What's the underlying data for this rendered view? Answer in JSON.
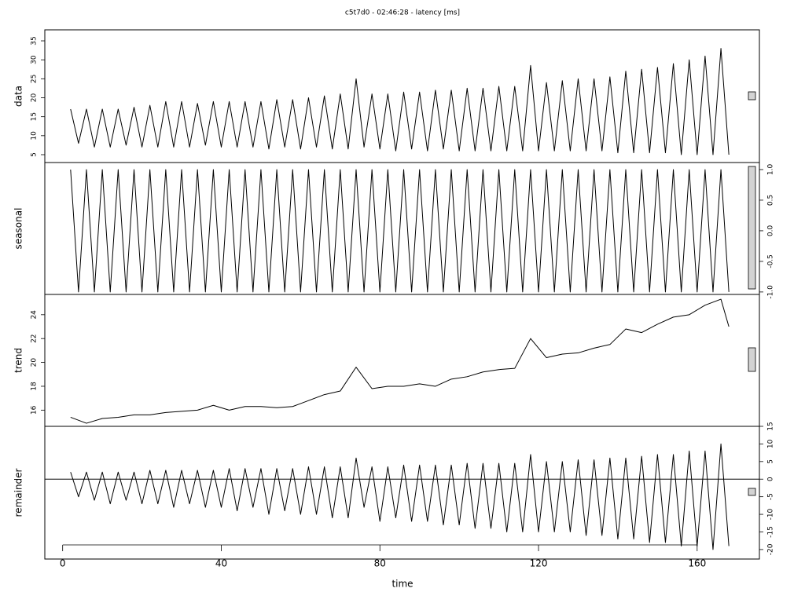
{
  "title": "c5t7d0 - 02:46:28 - latency [ms]",
  "xlabel": "time",
  "xlim": [
    -4.5,
    175.7
  ],
  "xticks": [
    0,
    40,
    80,
    120,
    160
  ],
  "chart_data": [
    {
      "type": "line",
      "ylabel": "data",
      "color": "#000000",
      "x": [
        2,
        4,
        6,
        8,
        10,
        12,
        14,
        16,
        18,
        20,
        22,
        24,
        26,
        28,
        30,
        32,
        34,
        36,
        38,
        40,
        42,
        44,
        46,
        48,
        50,
        52,
        54,
        56,
        58,
        60,
        62,
        64,
        66,
        68,
        70,
        72,
        74,
        76,
        78,
        80,
        82,
        84,
        86,
        88,
        90,
        92,
        94,
        96,
        98,
        100,
        102,
        104,
        106,
        108,
        110,
        112,
        114,
        116,
        118,
        120,
        122,
        124,
        126,
        128,
        130,
        132,
        134,
        136,
        138,
        140,
        142,
        144,
        146,
        148,
        150,
        152,
        154,
        156,
        158,
        160,
        162,
        164,
        166,
        168
      ],
      "values": [
        17,
        8,
        17,
        7,
        17,
        7,
        17,
        7.5,
        17.5,
        7,
        18,
        7,
        19,
        7,
        19,
        7,
        18.5,
        7.5,
        19,
        7,
        19,
        7,
        19,
        7,
        19,
        6.5,
        19.5,
        7,
        19.5,
        6.5,
        20,
        7,
        20.5,
        6.5,
        21,
        6.5,
        25,
        7,
        21,
        6.5,
        21,
        6,
        21.5,
        6.5,
        21.5,
        6,
        22,
        6.5,
        22,
        6,
        22.5,
        6,
        22.5,
        6,
        23,
        6,
        23,
        6,
        28.5,
        6,
        24,
        6,
        24.5,
        6,
        25,
        6,
        25,
        6,
        25.5,
        5.5,
        27,
        5.5,
        27.5,
        5.5,
        28,
        5.5,
        29,
        5,
        30,
        5,
        31,
        5,
        33,
        5
      ],
      "ylim": [
        2.93,
        37.9
      ],
      "yticks": [
        5,
        10,
        15,
        20,
        25,
        30,
        35
      ]
    },
    {
      "type": "line",
      "ylabel": "seasonal",
      "color": "#000000",
      "x": [
        2,
        4,
        6,
        8,
        10,
        12,
        14,
        16,
        18,
        20,
        22,
        24,
        26,
        28,
        30,
        32,
        34,
        36,
        38,
        40,
        42,
        44,
        46,
        48,
        50,
        52,
        54,
        56,
        58,
        60,
        62,
        64,
        66,
        68,
        70,
        72,
        74,
        76,
        78,
        80,
        82,
        84,
        86,
        88,
        90,
        92,
        94,
        96,
        98,
        100,
        102,
        104,
        106,
        108,
        110,
        112,
        114,
        116,
        118,
        120,
        122,
        124,
        126,
        128,
        130,
        132,
        134,
        136,
        138,
        140,
        142,
        144,
        146,
        148,
        150,
        152,
        154,
        156,
        158,
        160,
        162,
        164,
        166,
        168
      ],
      "values": [
        1,
        -1,
        1,
        -1,
        1,
        -1,
        1,
        -1,
        1,
        -1,
        1,
        -1,
        1,
        -1,
        1,
        -1,
        1,
        -1,
        1,
        -1,
        1,
        -1,
        1,
        -1,
        1,
        -1,
        1,
        -1,
        1,
        -1,
        1,
        -1,
        1,
        -1,
        1,
        -1,
        1,
        -1,
        1,
        -1,
        1,
        -1,
        1,
        -1,
        1,
        -1,
        1,
        -1,
        1,
        -1,
        1,
        -1,
        1,
        -1,
        1,
        -1,
        1,
        -1,
        1,
        -1,
        1,
        -1,
        1,
        -1,
        1,
        -1,
        1,
        -1,
        1,
        -1,
        1,
        -1,
        1,
        -1,
        1,
        -1,
        1,
        -1,
        1,
        -1,
        1,
        -1,
        1,
        -1
      ],
      "ylim": [
        -1.04,
        1.115
      ],
      "yticks": [
        {
          "value": -1,
          "label": "-1.0"
        },
        {
          "value": -0.5,
          "label": "-0.5"
        },
        {
          "value": 0,
          "label": "0.0"
        },
        {
          "value": 0.5,
          "label": "0.5"
        },
        {
          "value": 1,
          "label": "1.0"
        }
      ]
    },
    {
      "type": "line",
      "ylabel": "trend",
      "color": "#000000",
      "x": [
        2,
        6,
        10,
        14,
        18,
        22,
        26,
        30,
        34,
        38,
        42,
        46,
        50,
        54,
        58,
        62,
        66,
        70,
        74,
        78,
        82,
        86,
        90,
        94,
        98,
        102,
        106,
        110,
        114,
        118,
        122,
        126,
        130,
        134,
        138,
        142,
        146,
        150,
        154,
        158,
        162,
        166,
        168
      ],
      "values": [
        15.4,
        14.9,
        15.3,
        15.4,
        15.6,
        15.6,
        15.8,
        15.9,
        16.0,
        16.4,
        16.0,
        16.3,
        16.3,
        16.2,
        16.3,
        16.8,
        17.3,
        17.6,
        19.6,
        17.8,
        18.0,
        18.0,
        18.2,
        18.0,
        18.6,
        18.8,
        19.2,
        19.4,
        19.5,
        22.0,
        20.4,
        20.7,
        20.8,
        21.2,
        21.5,
        22.8,
        22.5,
        23.2,
        23.8,
        24.0,
        24.8,
        25.3,
        23.0
      ],
      "ylim": [
        14.64,
        25.7
      ],
      "yticks": [
        16,
        18,
        20,
        22,
        24
      ]
    },
    {
      "type": "line",
      "ylabel": "remainder",
      "color": "#000000",
      "hline": 0,
      "x": [
        2,
        4,
        6,
        8,
        10,
        12,
        14,
        16,
        18,
        20,
        22,
        24,
        26,
        28,
        30,
        32,
        34,
        36,
        38,
        40,
        42,
        44,
        46,
        48,
        50,
        52,
        54,
        56,
        58,
        60,
        62,
        64,
        66,
        68,
        70,
        72,
        74,
        76,
        78,
        80,
        82,
        84,
        86,
        88,
        90,
        92,
        94,
        96,
        98,
        100,
        102,
        104,
        106,
        108,
        110,
        112,
        114,
        116,
        118,
        120,
        122,
        124,
        126,
        128,
        130,
        132,
        134,
        136,
        138,
        140,
        142,
        144,
        146,
        148,
        150,
        152,
        154,
        156,
        158,
        160,
        162,
        164,
        166,
        168
      ],
      "values": [
        2,
        -5,
        2,
        -6,
        2,
        -7,
        2,
        -6,
        2,
        -7,
        2.5,
        -7,
        2.5,
        -8,
        2.5,
        -7,
        2.5,
        -8,
        2.5,
        -8,
        3,
        -9,
        3,
        -8,
        3,
        -10,
        3,
        -9,
        3,
        -10,
        3.5,
        -10,
        3.5,
        -11,
        3.5,
        -11,
        6,
        -8,
        3.5,
        -12,
        3.5,
        -11,
        4,
        -12,
        4,
        -12,
        4,
        -13,
        4,
        -13,
        4.5,
        -14,
        4.5,
        -14,
        4.5,
        -15,
        4.5,
        -15,
        7,
        -15,
        5,
        -15,
        5,
        -15,
        5.5,
        -16,
        5.5,
        -16,
        6,
        -17,
        6,
        -17,
        6.5,
        -18,
        7,
        -18,
        7,
        -19,
        8,
        -19,
        8,
        -20,
        10,
        -19
      ],
      "ylim": [
        -22.7,
        15
      ],
      "yticks": [
        -20,
        -15,
        -10,
        -5,
        0,
        5,
        10,
        15
      ]
    }
  ]
}
